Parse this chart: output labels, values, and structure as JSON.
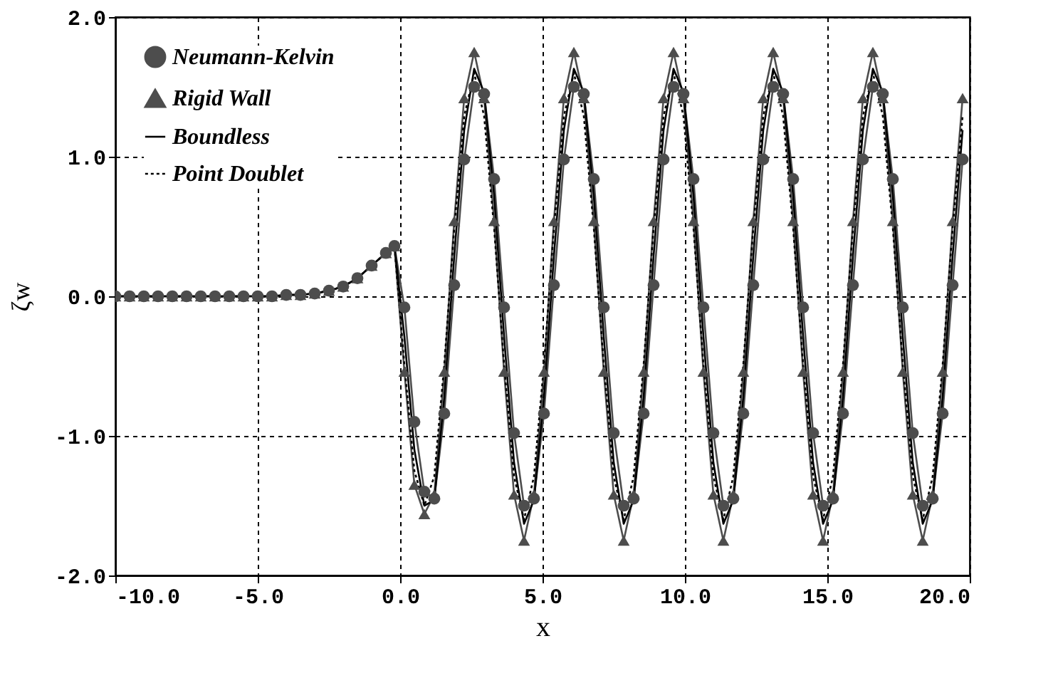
{
  "chart_data": {
    "type": "line",
    "xlabel": "x",
    "ylabel": "ζw",
    "xlim": [
      -10,
      20
    ],
    "ylim": [
      -2,
      2
    ],
    "xticks": [
      {
        "value": -10,
        "label": "-10.0"
      },
      {
        "value": -5,
        "label": "-5.0"
      },
      {
        "value": 0,
        "label": "0.0"
      },
      {
        "value": 5,
        "label": "5.0"
      },
      {
        "value": 10,
        "label": "10.0"
      },
      {
        "value": 15,
        "label": "15.0"
      },
      {
        "value": 20,
        "label": "20.0"
      }
    ],
    "yticks": [
      {
        "value": -2,
        "label": "-2.0"
      },
      {
        "value": -1,
        "label": "-1.0"
      },
      {
        "value": 0,
        "label": "0.0"
      },
      {
        "value": 1,
        "label": "1.0"
      },
      {
        "value": 2,
        "label": "2.0"
      }
    ],
    "grid": true,
    "legend": "top left",
    "x": [
      -10,
      -9.5,
      -9,
      -8.5,
      -8,
      -7.5,
      -7,
      -6.5,
      -6,
      -5.5,
      -5,
      -4.5,
      -4,
      -3.5,
      -3,
      -2.5,
      -2,
      -1.5,
      -1,
      -0.5,
      -0.2,
      0.15,
      0.5,
      0.85,
      1.2,
      1.55,
      1.9,
      2.25,
      2.6,
      2.95,
      3.3,
      3.65,
      4.0,
      4.35,
      4.7,
      5.05,
      5.4,
      5.75,
      6.1,
      6.45,
      6.8,
      7.15,
      7.5,
      7.85,
      8.2,
      8.55,
      8.9,
      9.25,
      9.6,
      9.95,
      10.3,
      10.65,
      11.0,
      11.35,
      11.7,
      12.05,
      12.4,
      12.75,
      13.1,
      13.45,
      13.8,
      14.15,
      14.5,
      14.85,
      15.2,
      15.55,
      15.9,
      16.25,
      16.6,
      16.95,
      17.3,
      17.65,
      18.0,
      18.35,
      18.7,
      19.05,
      19.4,
      19.75
    ],
    "series": [
      {
        "name": "Neumann-Kelvin",
        "color": "#4d4d4d",
        "marker": "circle",
        "line_style": "solid",
        "values": [
          0,
          0,
          0,
          0,
          0,
          0,
          0,
          0,
          0,
          0,
          0,
          0,
          0.01,
          0.01,
          0.02,
          0.04,
          0.07,
          0.13,
          0.22,
          0.31,
          0.36,
          -0.08,
          -0.9,
          -1.4,
          -1.45,
          -0.84,
          0.08,
          0.98,
          1.5,
          1.45,
          0.84,
          -0.08,
          -0.98,
          -1.5,
          -1.45,
          -0.84,
          0.08,
          0.98,
          1.5,
          1.45,
          0.84,
          -0.08,
          -0.98,
          -1.5,
          -1.45,
          -0.84,
          0.08,
          0.98,
          1.5,
          1.45,
          0.84,
          -0.08,
          -0.98,
          -1.5,
          -1.45,
          -0.84,
          0.08,
          0.98,
          1.5,
          1.45,
          0.84,
          -0.08,
          -0.98,
          -1.5,
          -1.45,
          -0.84,
          0.08,
          0.98,
          1.5,
          1.45,
          0.84,
          -0.08,
          -0.98,
          -1.5,
          -1.45,
          -0.84,
          0.08,
          0.98
        ]
      },
      {
        "name": "Rigid Wall",
        "color": "#4d4d4d",
        "marker": "triangle",
        "line_style": "solid",
        "values": [
          0,
          0,
          0,
          0,
          0,
          0,
          0,
          0,
          0,
          0,
          0,
          0,
          0.01,
          0.01,
          0.02,
          0.04,
          0.07,
          0.13,
          0.22,
          0.31,
          0.36,
          -0.54,
          -1.35,
          -1.56,
          -1.42,
          -0.54,
          0.54,
          1.42,
          1.75,
          1.42,
          0.54,
          -0.54,
          -1.42,
          -1.75,
          -1.42,
          -0.54,
          0.54,
          1.42,
          1.75,
          1.42,
          0.54,
          -0.54,
          -1.42,
          -1.75,
          -1.42,
          -0.54,
          0.54,
          1.42,
          1.75,
          1.42,
          0.54,
          -0.54,
          -1.42,
          -1.75,
          -1.42,
          -0.54,
          0.54,
          1.42,
          1.75,
          1.42,
          0.54,
          -0.54,
          -1.42,
          -1.75,
          -1.42,
          -0.54,
          0.54,
          1.42,
          1.75,
          1.42,
          0.54,
          -0.54,
          -1.42,
          -1.75,
          -1.42,
          -0.54,
          0.54,
          1.42
        ]
      },
      {
        "name": "Boundless",
        "color": "#000000",
        "marker": "none",
        "line_style": "solid",
        "values": [
          0,
          0,
          0,
          0,
          0,
          0,
          0,
          0,
          0,
          0,
          0,
          0,
          0.01,
          0.01,
          0.02,
          0.04,
          0.07,
          0.13,
          0.22,
          0.31,
          0.36,
          -0.29,
          -1.1,
          -1.5,
          -1.46,
          -0.72,
          0.29,
          1.19,
          1.63,
          1.46,
          0.72,
          -0.29,
          -1.19,
          -1.63,
          -1.46,
          -0.72,
          0.29,
          1.19,
          1.63,
          1.46,
          0.72,
          -0.29,
          -1.19,
          -1.63,
          -1.46,
          -0.72,
          0.29,
          1.19,
          1.63,
          1.46,
          0.72,
          -0.29,
          -1.19,
          -1.63,
          -1.46,
          -0.72,
          0.29,
          1.19,
          1.63,
          1.46,
          0.72,
          -0.29,
          -1.19,
          -1.63,
          -1.46,
          -0.72,
          0.29,
          1.19,
          1.63,
          1.46,
          0.72,
          -0.29,
          -1.19,
          -1.63,
          -1.46,
          -0.72,
          0.29,
          1.19
        ]
      },
      {
        "name": "Point Doublet",
        "color": "#000000",
        "marker": "none",
        "line_style": "dotted",
        "values": [
          0,
          0,
          0,
          0,
          0,
          0,
          0,
          0,
          0,
          0,
          0,
          0,
          0.01,
          0.01,
          0.02,
          0.04,
          0.07,
          0.13,
          0.22,
          0.31,
          0.36,
          -0.49,
          -1.25,
          -1.5,
          -1.29,
          -0.49,
          0.49,
          1.29,
          1.6,
          1.29,
          0.49,
          -0.49,
          -1.29,
          -1.6,
          -1.29,
          -0.49,
          0.49,
          1.29,
          1.6,
          1.29,
          0.49,
          -0.49,
          -1.29,
          -1.6,
          -1.29,
          -0.49,
          0.49,
          1.29,
          1.6,
          1.29,
          0.49,
          -0.49,
          -1.29,
          -1.6,
          -1.29,
          -0.49,
          0.49,
          1.29,
          1.6,
          1.29,
          0.49,
          -0.49,
          -1.29,
          -1.6,
          -1.29,
          -0.49,
          0.49,
          1.29,
          1.6,
          1.29,
          0.49,
          -0.49,
          -1.29,
          -1.6,
          -1.29,
          -0.49,
          0.49,
          1.29
        ]
      }
    ]
  }
}
